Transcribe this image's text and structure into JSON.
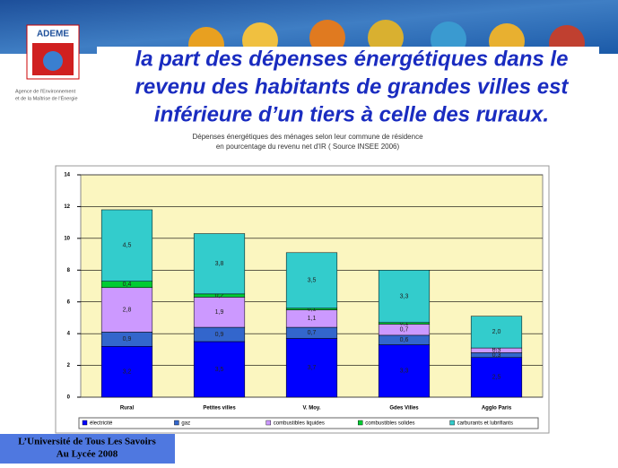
{
  "logo": {
    "name": "ADEME",
    "caption": [
      "Agence de l'Environnement",
      "et de la Maîtrise de l'Énergie"
    ]
  },
  "headline": [
    "la part des dépenses énergétiques dans le",
    "revenu des habitants de grandes villes est",
    "inférieure d’un tiers à celle des ruraux."
  ],
  "footer": [
    "L’Université de Tous Les Savoirs",
    "Au Lycée 2008"
  ],
  "chart_data": {
    "type": "stacked_bar",
    "title": [
      "Dépenses énergétiques des ménages selon leur commune de résidence",
      "en pourcentage du revenu net d'IR ( Source INSEE 2006)"
    ],
    "categories": [
      "Rural",
      "Petites villes",
      "V. Moy.",
      "Gdes Villes",
      "Agglo Paris"
    ],
    "ylim": [
      0,
      14
    ],
    "yticks": [
      0,
      2,
      4,
      6,
      8,
      10,
      12,
      14
    ],
    "grid": true,
    "legend": "bottom",
    "series": [
      {
        "name": "électricité",
        "color": "#0000ff",
        "values": [
          3.2,
          3.5,
          3.7,
          3.3,
          2.5
        ],
        "value_labels": [
          "3,2",
          "3,5",
          "3,7",
          "3,3",
          "2,5"
        ]
      },
      {
        "name": "gaz",
        "color": "#3366cc",
        "values": [
          0.9,
          0.9,
          0.7,
          0.6,
          0.3
        ],
        "value_labels": [
          "0,9",
          "0,9",
          "0,7",
          "0,6",
          "0,3"
        ]
      },
      {
        "name": "combustibles liquides",
        "color": "#cc99ff",
        "values": [
          2.8,
          1.9,
          1.1,
          0.7,
          0.3
        ],
        "value_labels": [
          "2,8",
          "1,9",
          "1,1",
          "0,7",
          "0,3"
        ]
      },
      {
        "name": "combustibles solides",
        "color": "#00cc33",
        "values": [
          0.4,
          0.2,
          0.1,
          0.1,
          0.0
        ],
        "value_labels": [
          "0,4",
          "0,2",
          "0,1",
          "0,1",
          "0,0"
        ]
      },
      {
        "name": "carburants et lubrifiants",
        "color": "#33cccc",
        "values": [
          4.5,
          3.8,
          3.5,
          3.3,
          2.0
        ],
        "value_labels": [
          "4,5",
          "3,8",
          "3,5",
          "3,3",
          "2,0"
        ]
      }
    ]
  }
}
